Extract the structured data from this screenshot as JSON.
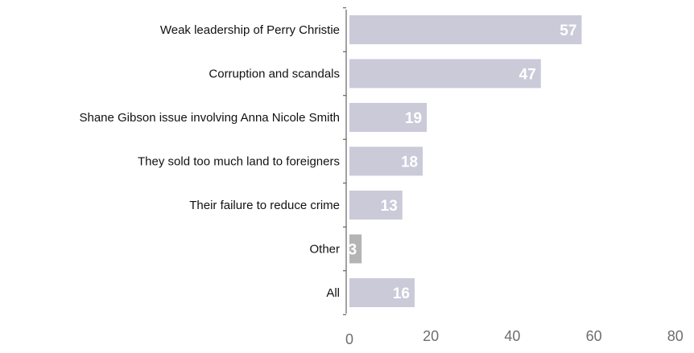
{
  "chart_data": {
    "type": "bar",
    "orientation": "horizontal",
    "categories": [
      "Weak leadership of Perry Christie",
      "Corruption and scandals",
      "Shane Gibson issue involving Anna Nicole Smith",
      "They sold too much land to foreigners",
      "Their failure to reduce crime",
      "Other",
      "All"
    ],
    "values": [
      57,
      47,
      19,
      18,
      13,
      3,
      16
    ],
    "data_labels": [
      "57",
      "47",
      "19",
      "18",
      "13",
      "3",
      "16"
    ],
    "xlim": [
      0,
      80
    ],
    "x_ticks": [
      0,
      20,
      40,
      60,
      80
    ],
    "x_tick_labels": [
      "0",
      "20",
      "40",
      "60",
      "80"
    ],
    "title": "",
    "xlabel": "",
    "ylabel": "",
    "grid": false,
    "legend": "none",
    "colors": {
      "bar": "#cbcad9",
      "bar_highlight": "#b4b4b4",
      "axis": "#444444"
    },
    "highlight_categories": [
      "Other"
    ]
  }
}
